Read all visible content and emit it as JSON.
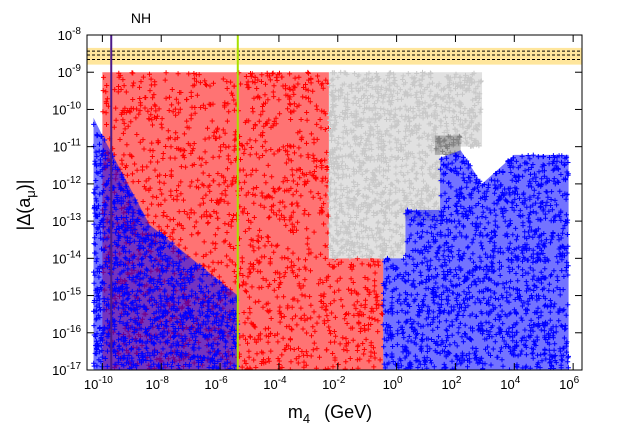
{
  "chart_data": {
    "type": "scatter",
    "title": "",
    "xlabel": {
      "base": "m",
      "sub": "4",
      "unit": "(GeV)"
    },
    "ylabel": {
      "pre": "|Δ(a",
      "sub": "μ",
      "post": ")|"
    },
    "x_scale": "log",
    "y_scale": "log",
    "xlim": [
      3e-11,
      2000000.0
    ],
    "ylim": [
      1e-17,
      1e-08
    ],
    "x_ticks": [
      {
        "base": "10",
        "exp": "-10",
        "value": 1e-10
      },
      {
        "base": "10",
        "exp": "-8",
        "value": 1e-08
      },
      {
        "base": "10",
        "exp": "-6",
        "value": 1e-06
      },
      {
        "base": "10",
        "exp": "-4",
        "value": 0.0001
      },
      {
        "base": "10",
        "exp": "-2",
        "value": 0.01
      },
      {
        "base": "10",
        "exp": "0",
        "value": 1
      },
      {
        "base": "10",
        "exp": "2",
        "value": 100.0
      },
      {
        "base": "10",
        "exp": "4",
        "value": 10000.0
      },
      {
        "base": "10",
        "exp": "6",
        "value": 1000000.0
      }
    ],
    "y_ticks": [
      {
        "base": "10",
        "exp": "-8",
        "value": 1e-08
      },
      {
        "base": "10",
        "exp": "-9",
        "value": 1e-09
      },
      {
        "base": "10",
        "exp": "-10",
        "value": 1e-10
      },
      {
        "base": "10",
        "exp": "-11",
        "value": 1e-11
      },
      {
        "base": "10",
        "exp": "-12",
        "value": 1e-12
      },
      {
        "base": "10",
        "exp": "-13",
        "value": 1e-13
      },
      {
        "base": "10",
        "exp": "-14",
        "value": 1e-14
      },
      {
        "base": "10",
        "exp": "-15",
        "value": 1e-15
      },
      {
        "base": "10",
        "exp": "-16",
        "value": 1e-16
      },
      {
        "base": "10",
        "exp": "-17",
        "value": 1e-17
      }
    ],
    "grid": false,
    "legend": "none",
    "colors": {
      "red": "#ff0000",
      "blue": "#0000ff",
      "gray": "#c8c8c8",
      "darkgray": "#808080",
      "band": "#ffd24a",
      "nh_line": "#4b1a8a",
      "green_line": "#a8e000"
    },
    "band": {
      "y_range": [
        1.6e-09,
        4.5e-09
      ],
      "dashed_levels": [
        2.2e-09,
        2.9e-09,
        3.7e-09
      ]
    },
    "vertical_lines": [
      {
        "x": 2e-10,
        "color": "#4b1a8a",
        "label": "NH"
      },
      {
        "x": 4e-06,
        "color": "#a8e000",
        "label": ""
      }
    ],
    "regions": [
      {
        "name": "red",
        "color": "#ff0000",
        "polygon": [
          [
            1e-10,
            1e-09
          ],
          [
            0.005,
            1e-09
          ],
          [
            0.005,
            1e-14
          ],
          [
            0.35,
            1e-14
          ],
          [
            0.35,
            1e-17
          ],
          [
            4e-06,
            1e-17
          ],
          [
            1e-10,
            1e-17
          ]
        ]
      },
      {
        "name": "gray",
        "color": "#c8c8c8",
        "polygon": [
          [
            0.005,
            1e-09
          ],
          [
            800,
            1e-09
          ],
          [
            800,
            1e-11
          ],
          [
            30,
            1e-11
          ],
          [
            30,
            1e-13
          ],
          [
            2,
            1e-13
          ],
          [
            2,
            1e-14
          ],
          [
            0.005,
            1e-14
          ]
        ]
      },
      {
        "name": "darkgray",
        "color": "#808080",
        "polygon": [
          [
            20,
            2e-11
          ],
          [
            150,
            2e-11
          ],
          [
            150,
            6e-12
          ],
          [
            20,
            6e-12
          ]
        ]
      },
      {
        "name": "blue_left",
        "color": "#0000ff",
        "polygon": [
          [
            5e-11,
            6e-11
          ],
          [
            1e-10,
            2e-11
          ],
          [
            4e-09,
            8e-14
          ],
          [
            4e-06,
            1e-15
          ],
          [
            4e-06,
            1e-17
          ],
          [
            5e-11,
            1e-17
          ]
        ]
      },
      {
        "name": "blue_right",
        "color": "#0000ff",
        "polygon": [
          [
            0.35,
            1e-14
          ],
          [
            2,
            1e-14
          ],
          [
            2,
            2e-13
          ],
          [
            30,
            2e-13
          ],
          [
            30,
            5e-12
          ],
          [
            150,
            8e-12
          ],
          [
            800,
            1e-12
          ],
          [
            10000.0,
            6e-12
          ],
          [
            700000.0,
            6e-12
          ],
          [
            700000.0,
            1e-17
          ],
          [
            0.35,
            1e-17
          ]
        ]
      }
    ]
  },
  "annotations": {
    "nh_label": "NH"
  }
}
